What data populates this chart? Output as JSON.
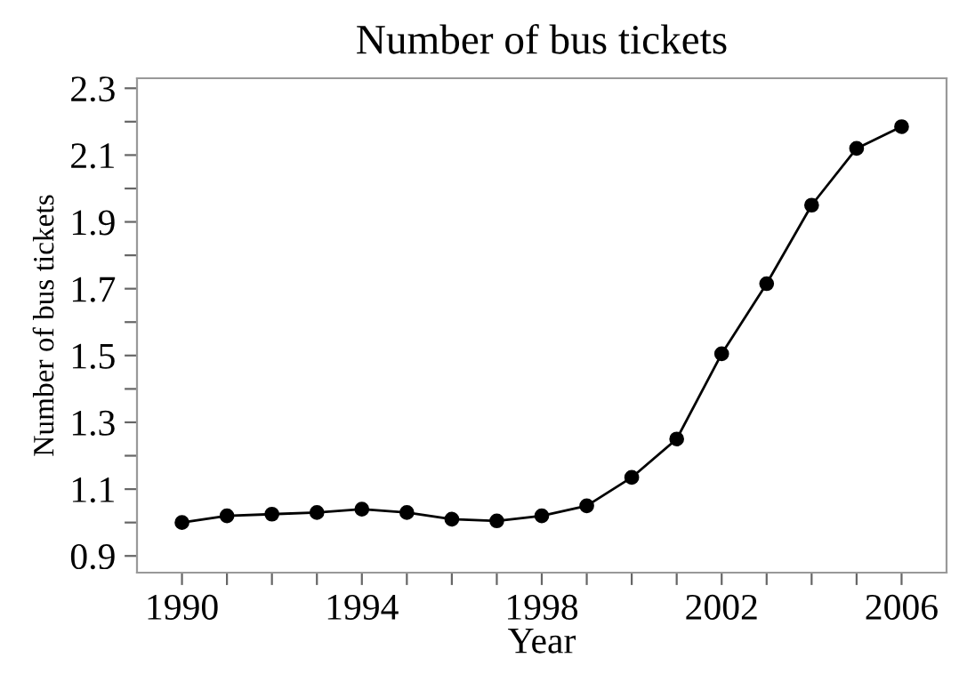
{
  "chart_data": {
    "type": "line",
    "title": "Number of bus tickets",
    "xlabel": "Year",
    "ylabel": "Number of bus tickets",
    "x": [
      1990,
      1991,
      1992,
      1993,
      1994,
      1995,
      1996,
      1997,
      1998,
      1999,
      2000,
      2001,
      2002,
      2003,
      2004,
      2005,
      2006
    ],
    "series": [
      {
        "color": "#000000",
        "values": [
          1.0,
          1.02,
          1.025,
          1.03,
          1.04,
          1.03,
          1.01,
          1.005,
          1.02,
          1.05,
          1.135,
          1.25,
          1.505,
          1.715,
          1.95,
          2.12,
          2.185
        ]
      }
    ],
    "marker": "circle",
    "line_style": "solid",
    "grid": false,
    "legend": false,
    "xlim": [
      1989,
      2007
    ],
    "ylim": [
      0.85,
      2.33
    ],
    "xticks": [
      1990,
      {
        "value": 1991,
        "label": null
      },
      {
        "value": 1992,
        "label": null
      },
      {
        "value": 1993,
        "label": null
      },
      1994,
      {
        "value": 1995,
        "label": null
      },
      {
        "value": 1996,
        "label": null
      },
      {
        "value": 1997,
        "label": null
      },
      1998,
      {
        "value": 1999,
        "label": null
      },
      {
        "value": 2000,
        "label": null
      },
      {
        "value": 2001,
        "label": null
      },
      2002,
      {
        "value": 2003,
        "label": null
      },
      {
        "value": 2004,
        "label": null
      },
      {
        "value": 2005,
        "label": null
      },
      2006
    ],
    "yticks": [
      0.9,
      {
        "value": 1.0,
        "label": null
      },
      1.1,
      {
        "value": 1.2,
        "label": null
      },
      1.3,
      {
        "value": 1.4,
        "label": null
      },
      1.5,
      {
        "value": 1.6,
        "label": null
      },
      1.7,
      {
        "value": 1.8,
        "label": null
      },
      1.9,
      {
        "value": 2.0,
        "label": null
      },
      2.1,
      {
        "value": 2.2,
        "label": null
      },
      2.3
    ]
  }
}
